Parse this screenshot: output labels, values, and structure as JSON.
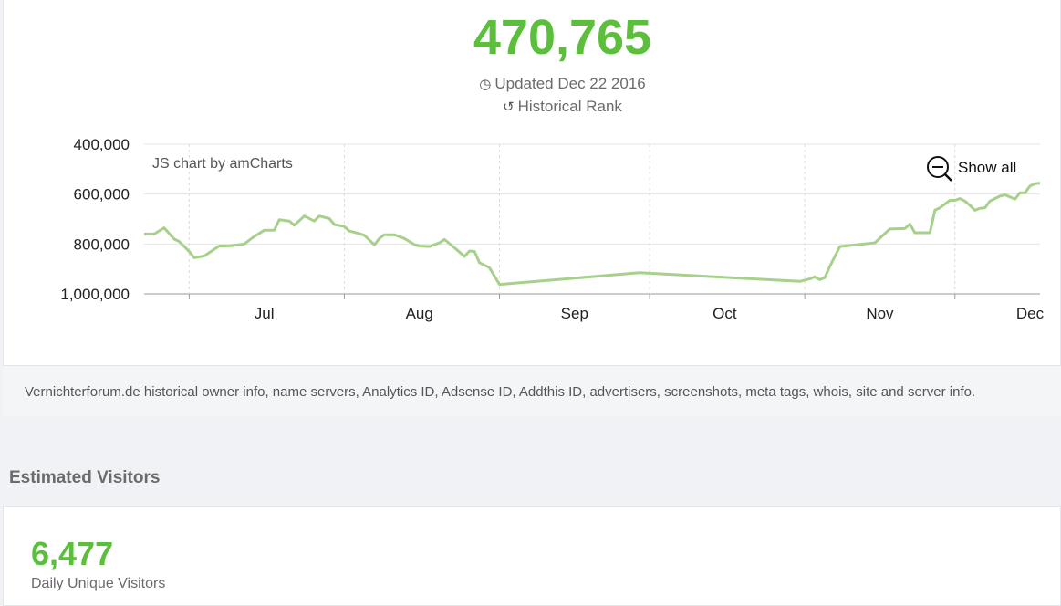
{
  "rank": {
    "value": "470,765",
    "updated": "Updated Dec 22 2016",
    "historical": "Historical Rank"
  },
  "chart_data": {
    "type": "line",
    "credit": "JS chart by amCharts",
    "zoom_label": "Show all",
    "y_reversed": true,
    "ylim": [
      400000,
      1000000
    ],
    "y_ticks": [
      "400,000",
      "600,000",
      "800,000",
      "1,000,000"
    ],
    "x_ticks": [
      "Jul",
      "Aug",
      "Sep",
      "Oct",
      "Nov",
      "Dec"
    ],
    "line_color": "#a8d08d",
    "series": [
      {
        "points": [
          [
            "2016-06-22",
            760000
          ],
          [
            "2016-06-24",
            760000
          ],
          [
            "2016-06-26",
            735000
          ],
          [
            "2016-06-28",
            780000
          ],
          [
            "2016-06-29",
            790000
          ],
          [
            "2016-07-01",
            830000
          ],
          [
            "2016-07-02",
            855000
          ],
          [
            "2016-07-04",
            848000
          ],
          [
            "2016-07-07",
            808000
          ],
          [
            "2016-07-09",
            808000
          ],
          [
            "2016-07-12",
            800000
          ],
          [
            "2016-07-14",
            770000
          ],
          [
            "2016-07-16",
            745000
          ],
          [
            "2016-07-18",
            745000
          ],
          [
            "2016-07-19",
            703000
          ],
          [
            "2016-07-21",
            708000
          ],
          [
            "2016-07-22",
            725000
          ],
          [
            "2016-07-24",
            688000
          ],
          [
            "2016-07-26",
            708000
          ],
          [
            "2016-07-27",
            688000
          ],
          [
            "2016-07-29",
            698000
          ],
          [
            "2016-07-30",
            722000
          ],
          [
            "2016-08-01",
            730000
          ],
          [
            "2016-08-02",
            748000
          ],
          [
            "2016-08-04",
            758000
          ],
          [
            "2016-08-05",
            765000
          ],
          [
            "2016-08-07",
            803000
          ],
          [
            "2016-08-08",
            778000
          ],
          [
            "2016-08-09",
            763000
          ],
          [
            "2016-08-11",
            763000
          ],
          [
            "2016-08-13",
            778000
          ],
          [
            "2016-08-15",
            802000
          ],
          [
            "2016-08-16",
            808000
          ],
          [
            "2016-08-18",
            810000
          ],
          [
            "2016-08-20",
            795000
          ],
          [
            "2016-08-21",
            782000
          ],
          [
            "2016-08-23",
            815000
          ],
          [
            "2016-08-25",
            850000
          ],
          [
            "2016-08-26",
            828000
          ],
          [
            "2016-08-27",
            830000
          ],
          [
            "2016-08-28",
            875000
          ],
          [
            "2016-08-30",
            895000
          ],
          [
            "2016-09-01",
            962000
          ],
          [
            "2016-09-29",
            915000
          ],
          [
            "2016-10-31",
            950000
          ],
          [
            "2016-11-02",
            940000
          ],
          [
            "2016-11-03",
            932000
          ],
          [
            "2016-11-04",
            943000
          ],
          [
            "2016-11-05",
            935000
          ],
          [
            "2016-11-06",
            890000
          ],
          [
            "2016-11-07",
            850000
          ],
          [
            "2016-11-08",
            810000
          ],
          [
            "2016-11-15",
            795000
          ],
          [
            "2016-11-18",
            740000
          ],
          [
            "2016-11-21",
            738000
          ],
          [
            "2016-11-22",
            720000
          ],
          [
            "2016-11-23",
            755000
          ],
          [
            "2016-11-26",
            755000
          ],
          [
            "2016-11-27",
            665000
          ],
          [
            "2016-11-28",
            655000
          ],
          [
            "2016-11-29",
            640000
          ],
          [
            "2016-11-30",
            625000
          ],
          [
            "2016-12-01",
            625000
          ],
          [
            "2016-12-02",
            618000
          ],
          [
            "2016-12-03",
            628000
          ],
          [
            "2016-12-04",
            645000
          ],
          [
            "2016-12-05",
            665000
          ],
          [
            "2016-12-06",
            657000
          ],
          [
            "2016-12-07",
            655000
          ],
          [
            "2016-12-08",
            628000
          ],
          [
            "2016-12-10",
            608000
          ],
          [
            "2016-12-11",
            603000
          ],
          [
            "2016-12-12",
            612000
          ],
          [
            "2016-12-13",
            620000
          ],
          [
            "2016-12-14",
            595000
          ],
          [
            "2016-12-15",
            595000
          ],
          [
            "2016-12-16",
            568000
          ],
          [
            "2016-12-17",
            558000
          ],
          [
            "2016-12-18",
            556000
          ]
        ]
      }
    ]
  },
  "description": "Vernichterforum.de historical owner info, name servers, Analytics ID, Adsense ID, Addthis ID, advertisers, screenshots, meta tags, whois, site and server info.",
  "visitors": {
    "heading": "Estimated Visitors",
    "value": "6,477",
    "label": "Daily Unique Visitors"
  }
}
